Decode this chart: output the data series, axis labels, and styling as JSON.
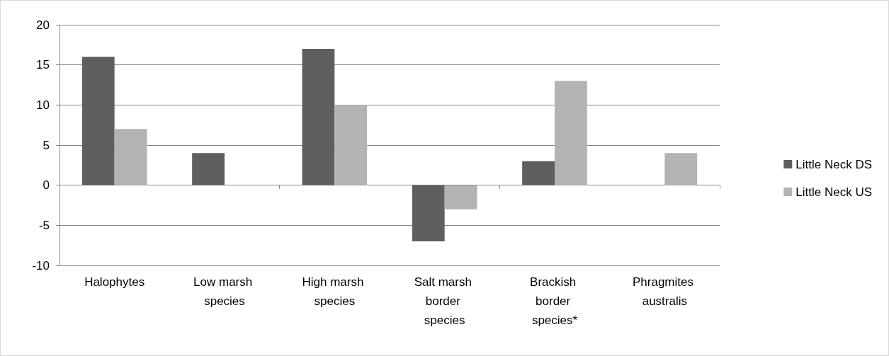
{
  "chart_data": {
    "type": "bar",
    "categories": [
      "Halophytes",
      "Low marsh species",
      "High marsh species",
      "Salt marsh border species",
      "Brackish border species*",
      "Phragmites australis"
    ],
    "series": [
      {
        "name": "Little Neck DS",
        "color": "#5f5f5f",
        "values": [
          16,
          4,
          17,
          -7,
          3,
          0
        ]
      },
      {
        "name": "Little Neck US",
        "color": "#b3b3b3",
        "values": [
          7,
          0,
          10,
          -3,
          13,
          4
        ]
      }
    ],
    "ylim": [
      -10,
      20
    ],
    "yticks": [
      -10,
      -5,
      0,
      5,
      10,
      15,
      20
    ],
    "grid": "y",
    "legend": "right"
  }
}
